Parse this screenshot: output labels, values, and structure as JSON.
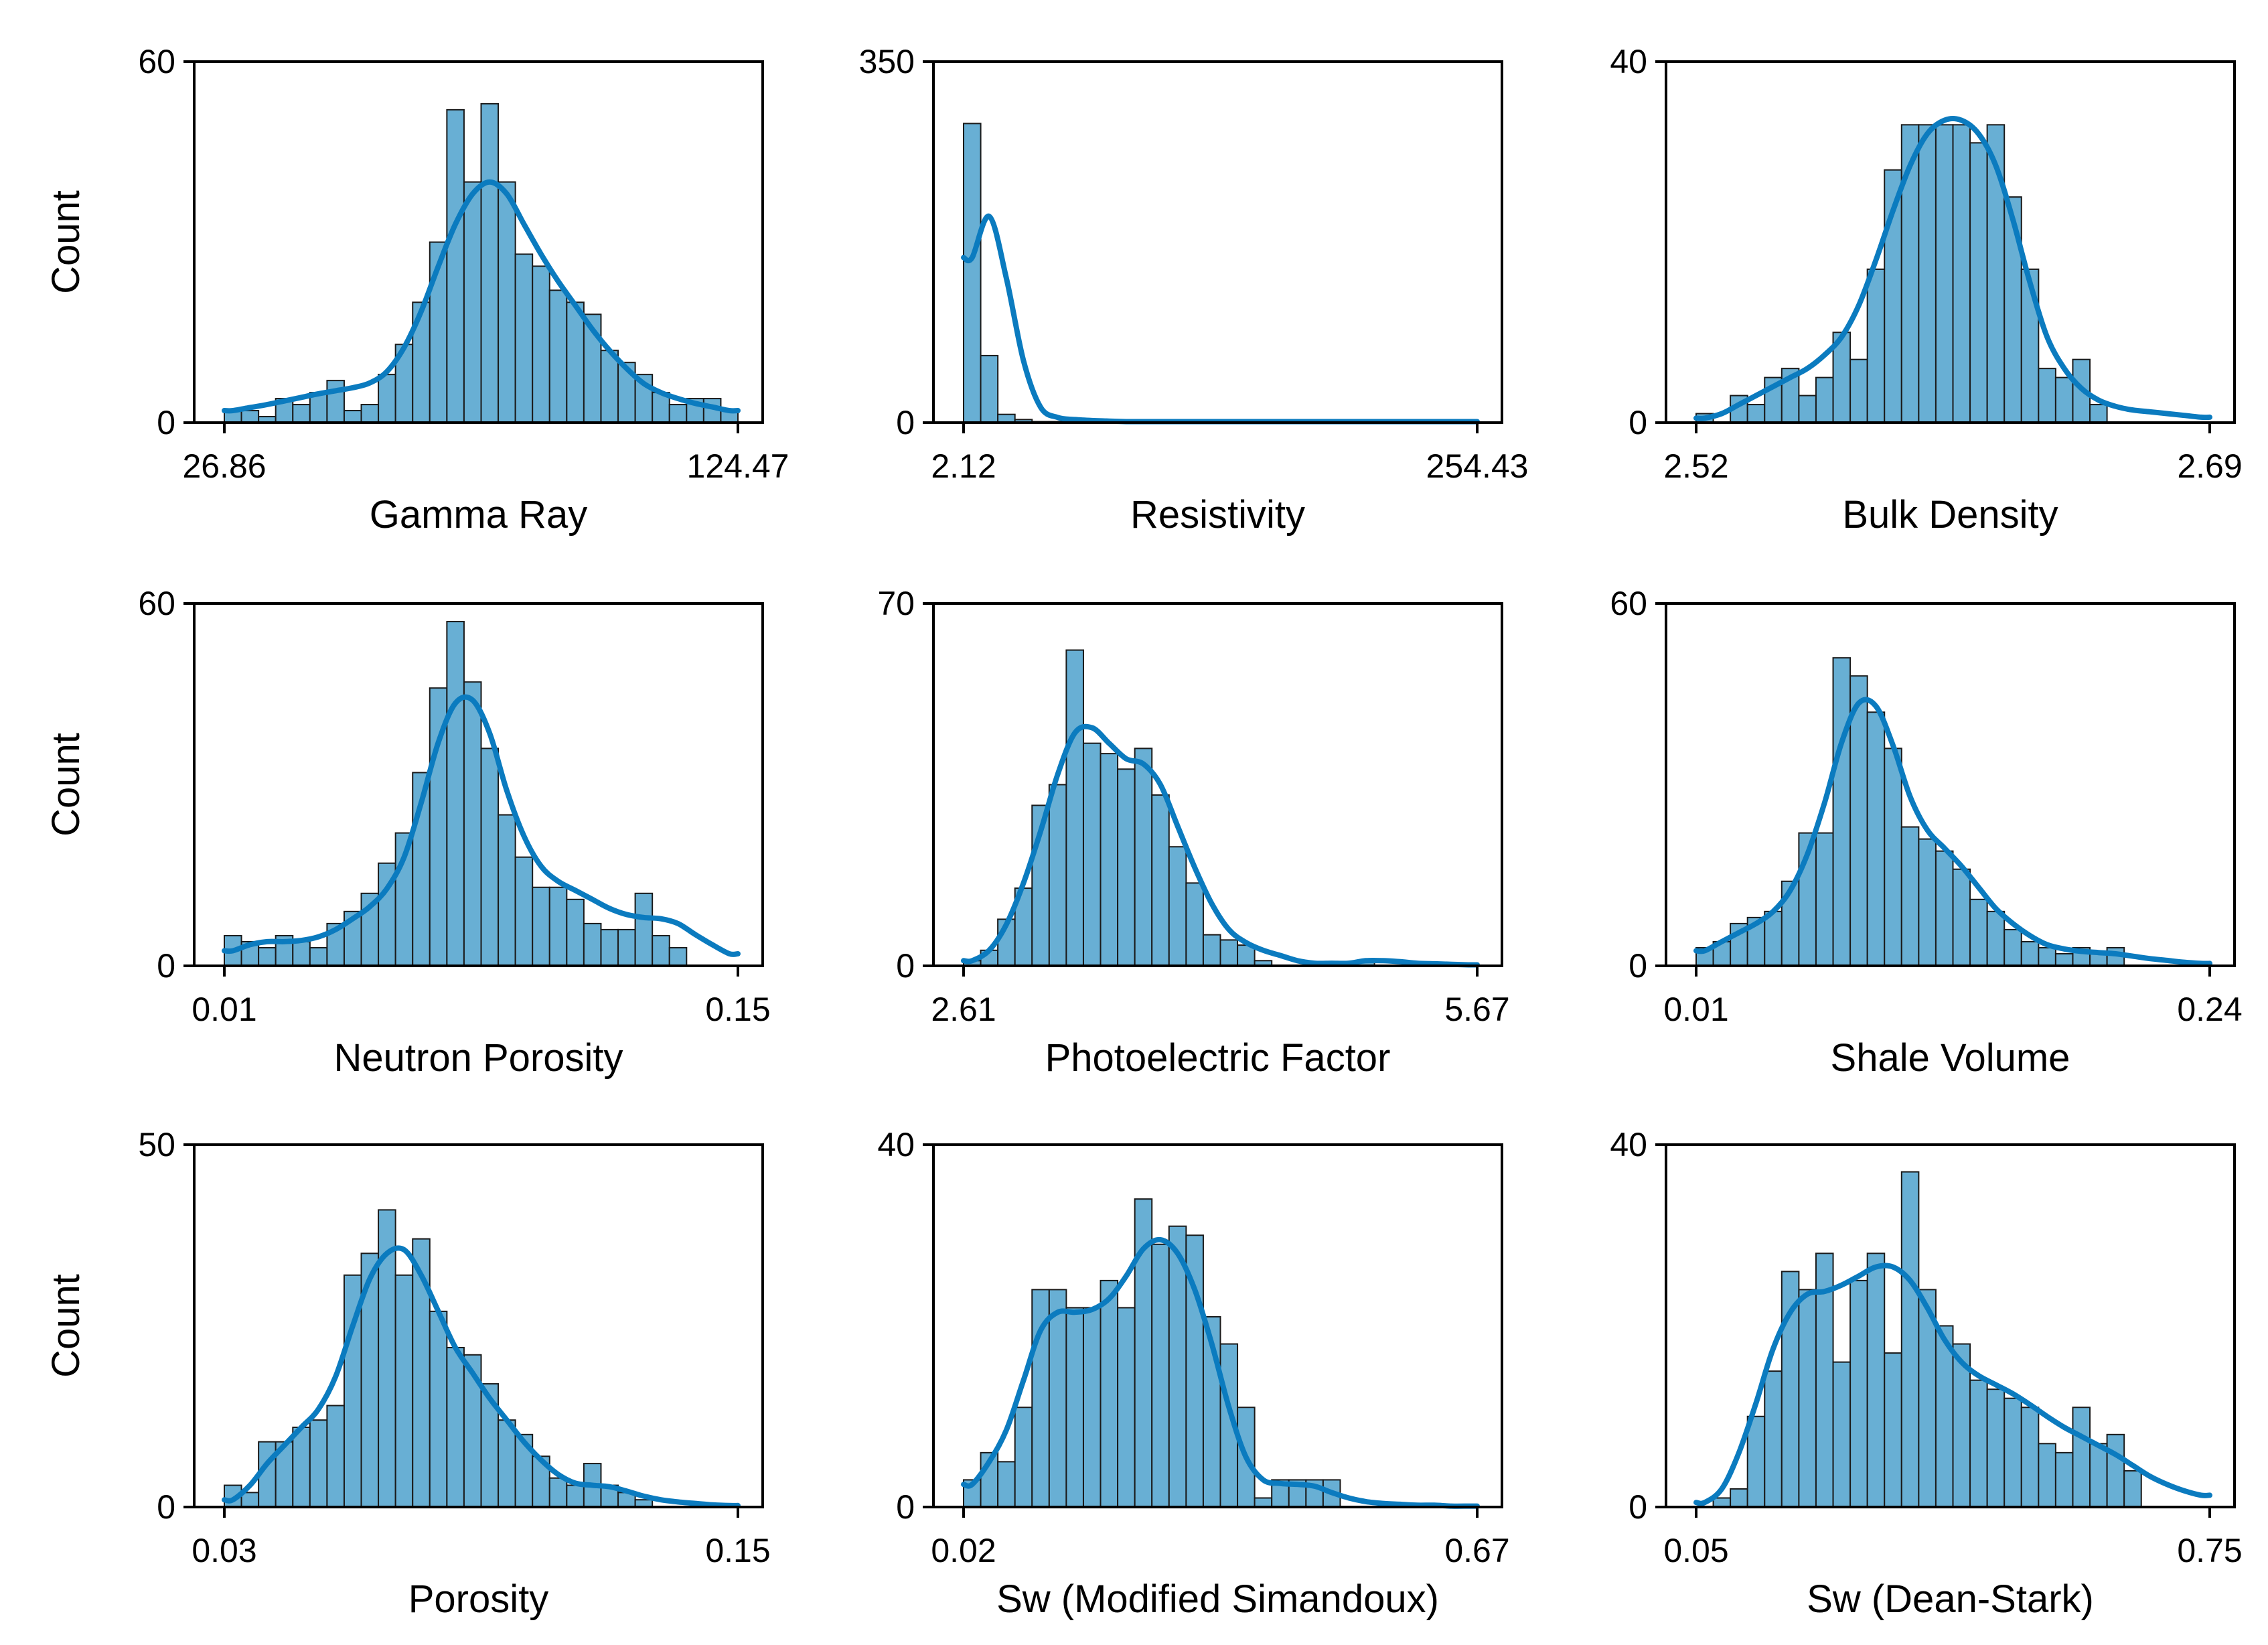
{
  "style": {
    "bar_fill": "#68AFD4",
    "bar_stroke": "#1a1a1a",
    "kde_color": "#0B7BBF",
    "axis_color": "#000000",
    "background": "#FFFFFF"
  },
  "chart_data": [
    {
      "type": "histogram",
      "xlabel": "Gamma Ray",
      "ylabel": "Count",
      "xmin_label": "26.86",
      "xmax_label": "124.47",
      "ymin_label": "0",
      "ymax_label": "60",
      "xlim": [
        26.86,
        124.47
      ],
      "ylim": [
        0,
        60
      ],
      "counts": [
        2,
        2,
        1,
        4,
        3,
        5,
        7,
        2,
        3,
        8,
        13,
        20,
        30,
        52,
        40,
        53,
        40,
        28,
        26,
        22,
        20,
        18,
        12,
        10,
        8,
        5,
        3,
        4,
        4,
        2
      ],
      "kde": [
        2,
        2.5,
        3,
        3.6,
        4.2,
        4.8,
        5.3,
        5.8,
        6.6,
        8.5,
        12.5,
        18.5,
        26,
        33,
        38,
        40,
        38,
        33,
        28,
        23.5,
        19.5,
        15.5,
        12,
        9,
        6.5,
        5,
        4,
        3.2,
        2.6,
        2
      ]
    },
    {
      "type": "histogram",
      "xlabel": "Resistivity",
      "ylabel": "",
      "xmin_label": "2.12",
      "xmax_label": "254.43",
      "ymin_label": "0",
      "ymax_label": "350",
      "xlim": [
        2.12,
        254.43
      ],
      "ylim": [
        0,
        350
      ],
      "counts": [
        290,
        65,
        8,
        3,
        1,
        1,
        0,
        0,
        0,
        0,
        0,
        0,
        0,
        0,
        0,
        0,
        0,
        0,
        0,
        0,
        0,
        0,
        0,
        0,
        0,
        0,
        0,
        0,
        0,
        0
      ],
      "kde": [
        160,
        200,
        140,
        60,
        15,
        5,
        3,
        2,
        1.5,
        1,
        1,
        1,
        1,
        1,
        1,
        1,
        1,
        1,
        1,
        1,
        1,
        1,
        1,
        1,
        1,
        1,
        1,
        1,
        1,
        1
      ]
    },
    {
      "type": "histogram",
      "xlabel": "Bulk Density",
      "ylabel": "",
      "xmin_label": "2.52",
      "xmax_label": "2.69",
      "ymin_label": "0",
      "ymax_label": "40",
      "xlim": [
        2.52,
        2.69
      ],
      "ylim": [
        0,
        40
      ],
      "counts": [
        1,
        0,
        3,
        2,
        5,
        6,
        3,
        5,
        10,
        7,
        17,
        28,
        33,
        33,
        33,
        33,
        31,
        33,
        25,
        17,
        6,
        5,
        7,
        2,
        0,
        0,
        0,
        0,
        0,
        0
      ],
      "kde": [
        0.5,
        1,
        2,
        3,
        4,
        5,
        6,
        7.5,
        9.5,
        13,
        18,
        23.5,
        28.5,
        32,
        33.5,
        33.5,
        32,
        28.5,
        22.5,
        15.5,
        9.5,
        6,
        3.8,
        2.5,
        1.8,
        1.4,
        1.2,
        1,
        0.8,
        0.6
      ]
    },
    {
      "type": "histogram",
      "xlabel": "Neutron Porosity",
      "ylabel": "Count",
      "xmin_label": "0.01",
      "xmax_label": "0.15",
      "ymin_label": "0",
      "ymax_label": "60",
      "xlim": [
        0.01,
        0.15
      ],
      "ylim": [
        0,
        60
      ],
      "counts": [
        5,
        4,
        3,
        5,
        4,
        3,
        7,
        9,
        12,
        17,
        22,
        32,
        46,
        57,
        47,
        36,
        25,
        18,
        13,
        13,
        11,
        7,
        6,
        6,
        12,
        5,
        3,
        0,
        0,
        0
      ],
      "kde": [
        2.5,
        3.5,
        4,
        4,
        4.2,
        4.8,
        6,
        7.8,
        9.8,
        12.8,
        18,
        27,
        37,
        43.5,
        44,
        38.5,
        29,
        21.5,
        16.5,
        14,
        12.5,
        11,
        9.5,
        8.5,
        8,
        7.8,
        7,
        5.2,
        3.5,
        2
      ]
    },
    {
      "type": "histogram",
      "xlabel": "Photoelectric Factor",
      "ylabel": "",
      "xmin_label": "2.61",
      "xmax_label": "5.67",
      "ymin_label": "0",
      "ymax_label": "70",
      "xlim": [
        2.61,
        5.67
      ],
      "ylim": [
        0,
        70
      ],
      "counts": [
        1,
        3,
        9,
        15,
        31,
        35,
        61,
        43,
        41,
        38,
        42,
        33,
        23,
        16,
        6,
        5,
        4,
        1,
        0,
        0,
        0,
        0,
        0,
        1,
        0,
        0,
        0,
        0,
        0,
        0
      ],
      "kde": [
        1,
        3,
        8,
        16,
        26,
        37,
        45,
        46,
        43,
        40,
        39,
        35,
        27,
        19,
        12,
        7,
        4.5,
        3,
        2,
        1,
        0.5,
        0.5,
        0.5,
        1,
        1,
        0.8,
        0.5,
        0.4,
        0.3,
        0.2
      ]
    },
    {
      "type": "histogram",
      "xlabel": "Shale Volume",
      "ylabel": "",
      "xmin_label": "0.01",
      "xmax_label": "0.24",
      "ymin_label": "0",
      "ymax_label": "60",
      "xlim": [
        0.01,
        0.24
      ],
      "ylim": [
        0,
        60
      ],
      "counts": [
        3,
        4,
        7,
        8,
        9,
        14,
        22,
        22,
        51,
        48,
        42,
        36,
        23,
        21,
        19,
        16,
        11,
        9,
        6,
        4,
        3,
        2,
        3,
        2,
        3,
        0,
        0,
        0,
        0,
        0
      ],
      "kde": [
        2.5,
        4,
        5.5,
        7,
        9,
        12.5,
        18.5,
        27,
        37,
        43.5,
        43,
        36.5,
        28,
        22.5,
        19.5,
        16.5,
        13,
        9.5,
        7,
        5,
        3.5,
        2.8,
        2.4,
        2.2,
        2,
        1.6,
        1.2,
        0.9,
        0.6,
        0.4
      ]
    },
    {
      "type": "histogram",
      "xlabel": "Porosity",
      "ylabel": "Count",
      "xmin_label": "0.03",
      "xmax_label": "0.15",
      "ymin_label": "0",
      "ymax_label": "50",
      "xlim": [
        0.03,
        0.15
      ],
      "ylim": [
        0,
        50
      ],
      "counts": [
        3,
        2,
        9,
        9,
        11,
        12,
        14,
        32,
        35,
        41,
        32,
        37,
        27,
        22,
        21,
        17,
        12,
        10,
        7,
        4,
        3,
        6,
        3,
        2,
        1,
        0,
        0,
        0,
        0,
        0
      ],
      "kde": [
        1,
        3,
        6,
        8.5,
        11,
        13.5,
        18,
        25,
        31.5,
        35,
        35.5,
        32,
        27,
        22,
        18.5,
        15,
        12,
        9,
        6.5,
        4.5,
        3.3,
        3,
        2.8,
        2.2,
        1.5,
        1,
        0.7,
        0.5,
        0.3,
        0.2
      ]
    },
    {
      "type": "histogram",
      "xlabel": "Sw (Modified Simandoux)",
      "ylabel": "",
      "xmin_label": "0.02",
      "xmax_label": "0.67",
      "ymin_label": "0",
      "ymax_label": "40",
      "xlim": [
        0.02,
        0.67
      ],
      "ylim": [
        0,
        40
      ],
      "counts": [
        3,
        6,
        5,
        11,
        24,
        24,
        22,
        22,
        25,
        22,
        34,
        29,
        31,
        30,
        21,
        18,
        11,
        1,
        3,
        3,
        3,
        3,
        0,
        0,
        0,
        0,
        0,
        0,
        0,
        0
      ],
      "kde": [
        2.5,
        5,
        8.5,
        14,
        19.5,
        21.5,
        21.5,
        21.8,
        23,
        25.5,
        28.5,
        29.5,
        28,
        24,
        18,
        11,
        5.5,
        3,
        2.6,
        2.5,
        2.3,
        1.6,
        1,
        0.6,
        0.4,
        0.3,
        0.2,
        0.2,
        0.1,
        0.1
      ]
    },
    {
      "type": "histogram",
      "xlabel": "Sw (Dean-Stark)",
      "ylabel": "",
      "xmin_label": "0.05",
      "xmax_label": "0.75",
      "ymin_label": "0",
      "ymax_label": "40",
      "xlim": [
        0.05,
        0.75
      ],
      "ylim": [
        0,
        40
      ],
      "counts": [
        0,
        1,
        2,
        10,
        15,
        26,
        24,
        28,
        16,
        25,
        28,
        17,
        37,
        24,
        20,
        18,
        14,
        13,
        12,
        11,
        7,
        6,
        11,
        7,
        8,
        4,
        0,
        0,
        0,
        0
      ],
      "kde": [
        0.5,
        2,
        6,
        11.5,
        17.5,
        21.5,
        23.5,
        23.8,
        24.5,
        25.5,
        26.5,
        26.5,
        25,
        22,
        18.5,
        16,
        14.5,
        13.5,
        12.5,
        11.3,
        10,
        8.8,
        7.8,
        6.8,
        5.8,
        4.6,
        3.4,
        2.5,
        1.8,
        1.3
      ]
    }
  ]
}
